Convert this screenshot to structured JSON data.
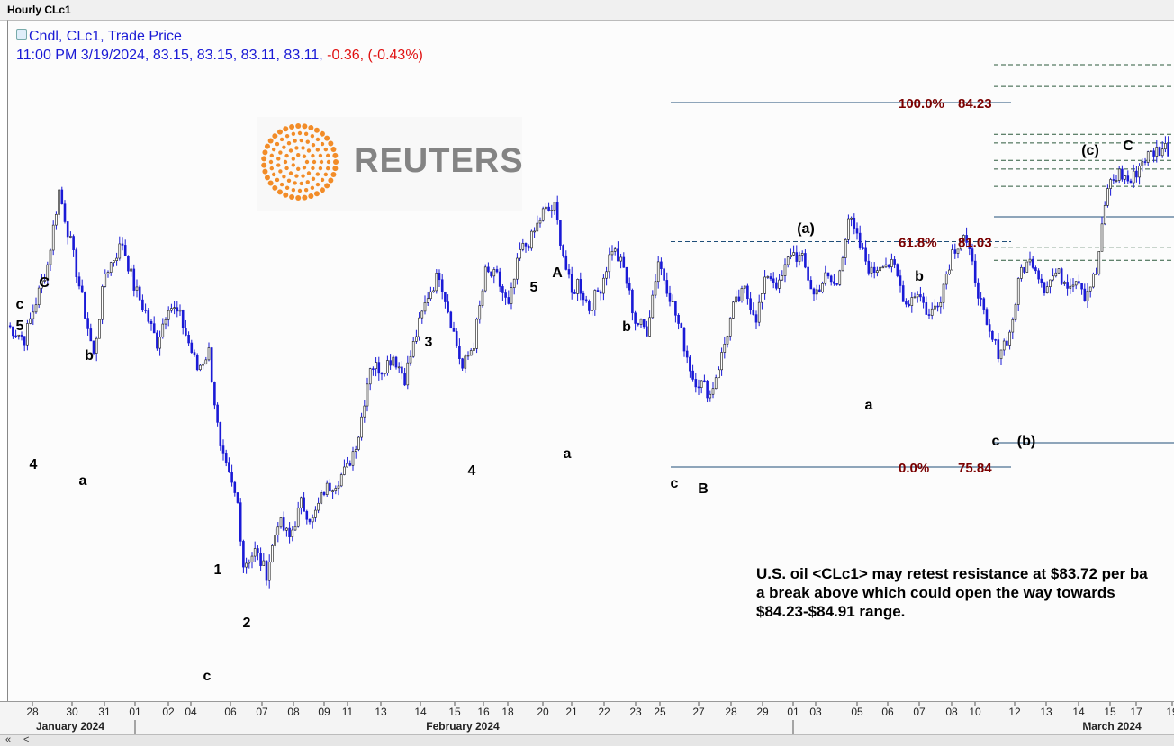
{
  "window": {
    "title": "Hourly CLc1"
  },
  "legend": {
    "line1": "Cndl, CLc1, Trade Price",
    "line2_prefix": "11:00 PM 3/19/2024, 83.15, 83.15, 83.11, 83.11,",
    "line2_change": " -0.36, (-0.43%)"
  },
  "logo": {
    "text": "REUTERS",
    "color": "#f28c28"
  },
  "note": {
    "text": "U.S. oil <CLc1> may retest resistance at $83.72 per ba\na break above which could open the way towards\n$84.23-$84.91 range."
  },
  "scroll": {
    "left_double": "«",
    "left_single": "<"
  },
  "colors": {
    "candle": "#1a1ad6",
    "fib_line": "#1f4e79",
    "fib_label": "#7a0000",
    "fib_dashed": "#2d5a3d"
  },
  "chart_data": {
    "type": "candlestick",
    "title": "Hourly CLc1",
    "series": "CLc1 Trade Price",
    "ylim": [
      72.8,
      85.8
    ],
    "x_tick_labels": [
      "28",
      "30",
      "31",
      "01",
      "02",
      "04",
      "06",
      "07",
      "08",
      "09",
      "11",
      "13",
      "14",
      "15",
      "16",
      "18",
      "20",
      "21",
      "22",
      "23",
      "25",
      "27",
      "28",
      "29",
      "01",
      "03",
      "05",
      "06",
      "07",
      "08",
      "10",
      "12",
      "13",
      "14",
      "15",
      "17",
      "19"
    ],
    "month_labels": [
      "January 2024",
      "February 2024",
      "March 2024"
    ],
    "price_path": [
      [
        0,
        79.1
      ],
      [
        3,
        78.8
      ],
      [
        7,
        80.5
      ],
      [
        9,
        82.2
      ],
      [
        11,
        81.0
      ],
      [
        15,
        78.4
      ],
      [
        17,
        80.3
      ],
      [
        20,
        81.0
      ],
      [
        22,
        80.0
      ],
      [
        24,
        79.4
      ],
      [
        26,
        78.7
      ],
      [
        28,
        79.6
      ],
      [
        30,
        79.3
      ],
      [
        33,
        78.1
      ],
      [
        35,
        78.5
      ],
      [
        37,
        76.2
      ],
      [
        40,
        75.0
      ],
      [
        41,
        73.6
      ],
      [
        43,
        73.9
      ],
      [
        45,
        73.4
      ],
      [
        47,
        74.6
      ],
      [
        49,
        74.2
      ],
      [
        51,
        75.0
      ],
      [
        53,
        74.6
      ],
      [
        55,
        75.3
      ],
      [
        57,
        75.5
      ],
      [
        59,
        75.8
      ],
      [
        61,
        76.6
      ],
      [
        63,
        78.2
      ],
      [
        65,
        78.1
      ],
      [
        67,
        78.4
      ],
      [
        69,
        77.9
      ],
      [
        71,
        78.9
      ],
      [
        73,
        79.8
      ],
      [
        75,
        80.3
      ],
      [
        77,
        79.2
      ],
      [
        79,
        78.1
      ],
      [
        81,
        78.7
      ],
      [
        83,
        80.3
      ],
      [
        85,
        80.2
      ],
      [
        87,
        79.5
      ],
      [
        89,
        80.8
      ],
      [
        91,
        81.1
      ],
      [
        93,
        81.7
      ],
      [
        95,
        81.8
      ],
      [
        97,
        80.4
      ],
      [
        98,
        79.8
      ],
      [
        99,
        80.1
      ],
      [
        101,
        79.5
      ],
      [
        103,
        80.0
      ],
      [
        105,
        80.9
      ],
      [
        107,
        80.4
      ],
      [
        109,
        79.2
      ],
      [
        111,
        79.0
      ],
      [
        113,
        80.6
      ],
      [
        115,
        79.8
      ],
      [
        117,
        78.9
      ],
      [
        119,
        77.9
      ],
      [
        121,
        77.7
      ],
      [
        122,
        77.5
      ],
      [
        124,
        78.4
      ],
      [
        126,
        79.5
      ],
      [
        128,
        79.9
      ],
      [
        130,
        79.3
      ],
      [
        132,
        80.3
      ],
      [
        134,
        80.0
      ],
      [
        136,
        80.8
      ],
      [
        138,
        80.6
      ],
      [
        140,
        79.8
      ],
      [
        142,
        80.2
      ],
      [
        144,
        80.0
      ],
      [
        146,
        81.6
      ],
      [
        148,
        80.9
      ],
      [
        150,
        80.3
      ],
      [
        152,
        80.6
      ],
      [
        154,
        80.4
      ],
      [
        156,
        79.6
      ],
      [
        158,
        79.9
      ],
      [
        160,
        79.3
      ],
      [
        162,
        79.8
      ],
      [
        164,
        80.8
      ],
      [
        166,
        81.2
      ],
      [
        168,
        80.2
      ],
      [
        170,
        79.0
      ],
      [
        172,
        78.5
      ],
      [
        174,
        78.9
      ],
      [
        176,
        80.4
      ],
      [
        178,
        80.6
      ],
      [
        180,
        80.0
      ],
      [
        182,
        80.3
      ],
      [
        184,
        80.1
      ],
      [
        186,
        80.2
      ],
      [
        187,
        79.8
      ],
      [
        189,
        80.3
      ],
      [
        191,
        82.3
      ],
      [
        193,
        82.6
      ],
      [
        195,
        82.4
      ],
      [
        197,
        82.9
      ],
      [
        199,
        83.1
      ],
      [
        201,
        83.2
      ],
      [
        202,
        83.1
      ]
    ],
    "fibonacci": [
      {
        "label": "100.0%",
        "value": 84.23,
        "value_label": "84.23"
      },
      {
        "label": "61.8%",
        "value": 81.03,
        "value_label": "81.03"
      },
      {
        "label": "0.0%",
        "value": 75.84,
        "value_label": "75.84"
      }
    ],
    "annotations": [
      "5",
      "c",
      "C",
      "4",
      "b",
      "a",
      "c",
      "1",
      "2",
      "3",
      "4",
      "5",
      "A",
      "a",
      "b",
      "c",
      "B",
      "(a)",
      "a",
      "b",
      "c",
      "(b)",
      "(c)",
      "C"
    ]
  }
}
